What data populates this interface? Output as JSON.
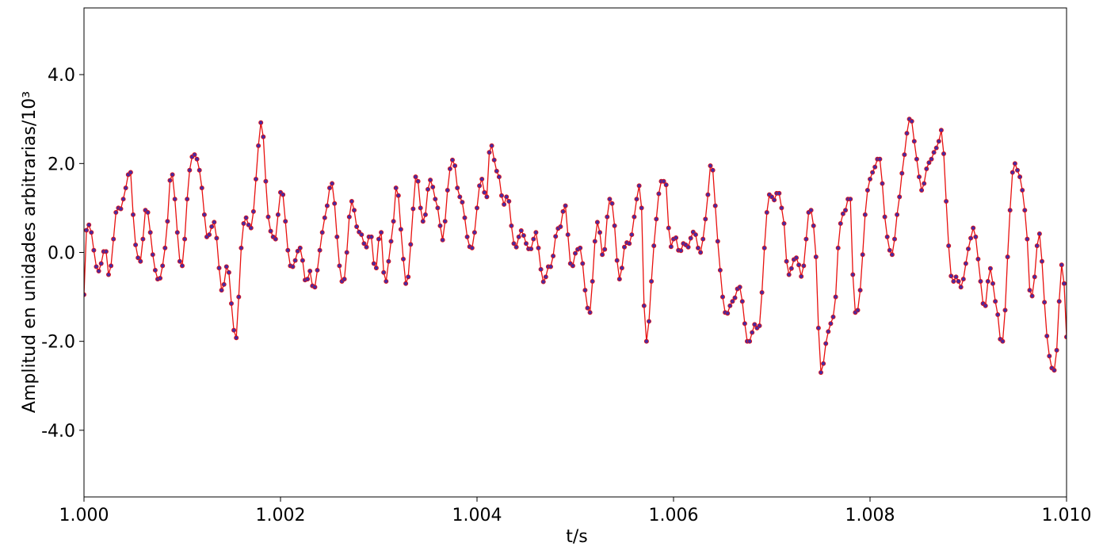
{
  "chart_data": {
    "type": "line",
    "markers": true,
    "xlabel": "t/s",
    "ylabel": "Amplitud en unidades arbitrarias/10³",
    "color": "#e8110f",
    "marker_color": "#4b2aa0",
    "xlim": [
      1.0,
      1.01
    ],
    "ylim": [
      -5.5,
      5.5
    ],
    "xticks": [
      {
        "value": 1.0,
        "label": "1.000"
      },
      {
        "value": 1.002,
        "label": "1.002"
      },
      {
        "value": 1.004,
        "label": "1.004"
      },
      {
        "value": 1.006,
        "label": "1.006"
      },
      {
        "value": 1.008,
        "label": "1.008"
      },
      {
        "value": 1.01,
        "label": "1.010"
      }
    ],
    "yticks": [
      {
        "value": -4,
        "label": "-4.0"
      },
      {
        "value": -2,
        "label": "-2.0"
      },
      {
        "value": 0,
        "label": "0.0"
      },
      {
        "value": 2,
        "label": "2.0"
      },
      {
        "value": 4,
        "label": "4.0"
      }
    ],
    "x": [
      1.0,
      1.000025,
      1.00005,
      1.000075,
      1.0001,
      1.000125,
      1.00015,
      1.000175,
      1.0002,
      1.000225,
      1.00025,
      1.000275,
      1.0003,
      1.000325,
      1.00035,
      1.000375,
      1.0004,
      1.000425,
      1.00045,
      1.000475,
      1.0005,
      1.000525,
      1.00055,
      1.000575,
      1.0006,
      1.000625,
      1.00065,
      1.000675,
      1.0007,
      1.000725,
      1.00075,
      1.000775,
      1.0008,
      1.000825,
      1.00085,
      1.000875,
      1.0009,
      1.000925,
      1.00095,
      1.000975,
      1.001,
      1.001025,
      1.00105,
      1.001075,
      1.0011,
      1.001125,
      1.00115,
      1.001175,
      1.0012,
      1.001225,
      1.00125,
      1.001275,
      1.0013,
      1.001325,
      1.00135,
      1.001375,
      1.0014,
      1.001425,
      1.00145,
      1.001475,
      1.0015,
      1.001525,
      1.00155,
      1.001575,
      1.0016,
      1.001625,
      1.00165,
      1.001675,
      1.0017,
      1.001725,
      1.00175,
      1.001775,
      1.0018,
      1.001825,
      1.00185,
      1.001875,
      1.0019,
      1.001925,
      1.00195,
      1.001975,
      1.002,
      1.002025,
      1.00205,
      1.002075,
      1.0021,
      1.002125,
      1.00215,
      1.002175,
      1.0022,
      1.002225,
      1.00225,
      1.002275,
      1.0023,
      1.002325,
      1.00235,
      1.002375,
      1.0024,
      1.002425,
      1.00245,
      1.002475,
      1.0025,
      1.002525,
      1.00255,
      1.002575,
      1.0026,
      1.002625,
      1.00265,
      1.002675,
      1.0027,
      1.002725,
      1.00275,
      1.002775,
      1.0028,
      1.002825,
      1.00285,
      1.002875,
      1.0029,
      1.002925,
      1.00295,
      1.002975,
      1.003,
      1.003025,
      1.00305,
      1.003075,
      1.0031,
      1.003125,
      1.00315,
      1.003175,
      1.0032,
      1.003225,
      1.00325,
      1.003275,
      1.0033,
      1.003325,
      1.00335,
      1.003375,
      1.0034,
      1.003425,
      1.00345,
      1.003475,
      1.0035,
      1.003525,
      1.00355,
      1.003575,
      1.0036,
      1.003625,
      1.00365,
      1.003675,
      1.0037,
      1.003725,
      1.00375,
      1.003775,
      1.0038,
      1.003825,
      1.00385,
      1.003875,
      1.0039,
      1.003925,
      1.00395,
      1.003975,
      1.004,
      1.004025,
      1.00405,
      1.004075,
      1.0041,
      1.004125,
      1.00415,
      1.004175,
      1.0042,
      1.004225,
      1.00425,
      1.004275,
      1.0043,
      1.004325,
      1.00435,
      1.004375,
      1.0044,
      1.004425,
      1.00445,
      1.004475,
      1.0045,
      1.004525,
      1.00455,
      1.004575,
      1.0046,
      1.004625,
      1.00465,
      1.004675,
      1.0047,
      1.004725,
      1.00475,
      1.004775,
      1.0048,
      1.004825,
      1.00485,
      1.004875,
      1.0049,
      1.004925,
      1.00495,
      1.004975,
      1.005,
      1.005025,
      1.00505,
      1.005075,
      1.0051,
      1.005125,
      1.00515,
      1.005175,
      1.0052,
      1.005225,
      1.00525,
      1.005275,
      1.0053,
      1.005325,
      1.00535,
      1.005375,
      1.0054,
      1.005425,
      1.00545,
      1.005475,
      1.0055,
      1.005525,
      1.00555,
      1.005575,
      1.0056,
      1.005625,
      1.00565,
      1.005675,
      1.0057,
      1.005725,
      1.00575,
      1.005775,
      1.0058,
      1.005825,
      1.00585,
      1.005875,
      1.0059,
      1.005925,
      1.00595,
      1.005975,
      1.006,
      1.006025,
      1.00605,
      1.006075,
      1.0061,
      1.006125,
      1.00615,
      1.006175,
      1.0062,
      1.006225,
      1.00625,
      1.006275,
      1.0063,
      1.006325,
      1.00635,
      1.006375,
      1.0064,
      1.006425,
      1.00645,
      1.006475,
      1.0065,
      1.006525,
      1.00655,
      1.006575,
      1.0066,
      1.006625,
      1.00665,
      1.006675,
      1.0067,
      1.006725,
      1.00675,
      1.006775,
      1.0068,
      1.006825,
      1.00685,
      1.006875,
      1.0069,
      1.006925,
      1.00695,
      1.006975,
      1.007,
      1.007025,
      1.00705,
      1.007075,
      1.0071,
      1.007125,
      1.00715,
      1.007175,
      1.0072,
      1.007225,
      1.00725,
      1.007275,
      1.0073,
      1.007325,
      1.00735,
      1.007375,
      1.0074,
      1.007425,
      1.00745,
      1.007475,
      1.0075,
      1.007525,
      1.00755,
      1.007575,
      1.0076,
      1.007625,
      1.00765,
      1.007675,
      1.0077,
      1.007725,
      1.00775,
      1.007775,
      1.0078,
      1.007825,
      1.00785,
      1.007875,
      1.0079,
      1.007925,
      1.00795,
      1.007975,
      1.008,
      1.008025,
      1.00805,
      1.008075,
      1.0081,
      1.008125,
      1.00815,
      1.008175,
      1.0082,
      1.008225,
      1.00825,
      1.008275,
      1.0083,
      1.008325,
      1.00835,
      1.008375,
      1.0084,
      1.008425,
      1.00845,
      1.008475,
      1.0085,
      1.008525,
      1.00855,
      1.008575,
      1.0086,
      1.008625,
      1.00865,
      1.008675,
      1.0087,
      1.008725,
      1.00875,
      1.008775,
      1.0088,
      1.008825,
      1.00885,
      1.008875,
      1.0089,
      1.008925,
      1.00895,
      1.008975,
      1.009,
      1.009025,
      1.00905,
      1.009075,
      1.0091,
      1.009125,
      1.00915,
      1.009175,
      1.0092,
      1.009225,
      1.00925,
      1.009275,
      1.0093,
      1.009325,
      1.00935,
      1.009375,
      1.0094,
      1.009425,
      1.00945,
      1.009475,
      1.0095,
      1.009525,
      1.00955,
      1.009575,
      1.0096,
      1.009625,
      1.00965,
      1.009675,
      1.0097,
      1.009725,
      1.00975,
      1.009775,
      1.0098,
      1.009825,
      1.00985,
      1.009875,
      1.0099,
      1.009925,
      1.00995,
      1.009975,
      1.01
    ],
    "values": [
      -0.95,
      0.5,
      0.62,
      0.45,
      0.05,
      -0.32,
      -0.42,
      -0.25,
      0.02,
      0.02,
      -0.5,
      -0.3,
      0.3,
      0.9,
      1.0,
      0.98,
      1.2,
      1.45,
      1.75,
      1.8,
      0.85,
      0.17,
      -0.12,
      -0.2,
      0.3,
      0.95,
      0.9,
      0.45,
      -0.05,
      -0.4,
      -0.6,
      -0.58,
      -0.3,
      0.1,
      0.7,
      1.62,
      1.75,
      1.2,
      0.45,
      -0.2,
      -0.3,
      0.3,
      1.2,
      1.85,
      2.15,
      2.2,
      2.1,
      1.85,
      1.45,
      0.85,
      0.35,
      0.4,
      0.58,
      0.68,
      0.32,
      -0.35,
      -0.85,
      -0.72,
      -0.32,
      -0.45,
      -1.15,
      -1.75,
      -1.92,
      -1.0,
      0.1,
      0.65,
      0.78,
      0.62,
      0.55,
      0.92,
      1.65,
      2.4,
      2.92,
      2.6,
      1.6,
      0.8,
      0.48,
      0.35,
      0.3,
      0.85,
      1.35,
      1.3,
      0.7,
      0.05,
      -0.3,
      -0.32,
      -0.18,
      0.03,
      0.1,
      -0.18,
      -0.62,
      -0.6,
      -0.42,
      -0.75,
      -0.78,
      -0.4,
      0.05,
      0.45,
      0.78,
      1.05,
      1.45,
      1.55,
      1.1,
      0.35,
      -0.3,
      -0.65,
      -0.6,
      0.0,
      0.8,
      1.15,
      0.95,
      0.58,
      0.46,
      0.4,
      0.2,
      0.12,
      0.35,
      0.35,
      -0.25,
      -0.35,
      0.3,
      0.45,
      -0.45,
      -0.65,
      -0.2,
      0.25,
      0.7,
      1.45,
      1.28,
      0.52,
      -0.15,
      -0.7,
      -0.55,
      0.18,
      0.98,
      1.7,
      1.6,
      1.0,
      0.7,
      0.85,
      1.42,
      1.63,
      1.47,
      1.2,
      1.0,
      0.6,
      0.28,
      0.7,
      1.4,
      1.88,
      2.08,
      1.95,
      1.45,
      1.25,
      1.13,
      0.78,
      0.35,
      0.13,
      0.1,
      0.45,
      1.0,
      1.5,
      1.65,
      1.35,
      1.25,
      2.25,
      2.4,
      2.08,
      1.83,
      1.7,
      1.28,
      1.08,
      1.25,
      1.15,
      0.6,
      0.2,
      0.12,
      0.35,
      0.49,
      0.38,
      0.2,
      0.08,
      0.08,
      0.3,
      0.45,
      0.1,
      -0.38,
      -0.66,
      -0.55,
      -0.32,
      -0.32,
      -0.08,
      0.36,
      0.54,
      0.58,
      0.92,
      1.05,
      0.4,
      -0.25,
      -0.3,
      -0.02,
      0.07,
      0.1,
      -0.25,
      -0.85,
      -1.25,
      -1.35,
      -0.65,
      0.25,
      0.68,
      0.45,
      -0.05,
      0.07,
      0.8,
      1.2,
      1.1,
      0.6,
      -0.18,
      -0.6,
      -0.35,
      0.12,
      0.22,
      0.2,
      0.4,
      0.8,
      1.2,
      1.5,
      1.0,
      -1.2,
      -2.0,
      -1.55,
      -0.65,
      0.15,
      0.75,
      1.32,
      1.6,
      1.6,
      1.52,
      0.55,
      0.13,
      0.3,
      0.33,
      0.05,
      0.04,
      0.2,
      0.17,
      0.12,
      0.32,
      0.46,
      0.4,
      0.1,
      0.0,
      0.3,
      0.75,
      1.3,
      1.95,
      1.85,
      1.05,
      0.25,
      -0.4,
      -1.0,
      -1.35,
      -1.37,
      -1.2,
      -1.1,
      -1.02,
      -0.82,
      -0.78,
      -1.1,
      -1.6,
      -2.0,
      -2.0,
      -1.8,
      -1.62,
      -1.7,
      -1.65,
      -0.9,
      0.1,
      0.9,
      1.3,
      1.25,
      1.18,
      1.33,
      1.33,
      1.0,
      0.65,
      -0.2,
      -0.5,
      -0.36,
      -0.16,
      -0.12,
      -0.28,
      -0.54,
      -0.3,
      0.3,
      0.9,
      0.95,
      0.6,
      -0.1,
      -1.7,
      -2.7,
      -2.5,
      -2.05,
      -1.78,
      -1.6,
      -1.45,
      -1.0,
      0.1,
      0.65,
      0.87,
      0.95,
      1.2,
      1.2,
      -0.5,
      -1.35,
      -1.3,
      -0.85,
      -0.05,
      0.85,
      1.4,
      1.65,
      1.8,
      1.92,
      2.1,
      2.1,
      1.55,
      0.8,
      0.35,
      0.05,
      -0.05,
      0.3,
      0.85,
      1.25,
      1.78,
      2.2,
      2.68,
      3.0,
      2.95,
      2.5,
      2.1,
      1.7,
      1.4,
      1.55,
      1.88,
      2.02,
      2.1,
      2.25,
      2.35,
      2.5,
      2.75,
      2.22,
      1.15,
      0.15,
      -0.53,
      -0.65,
      -0.55,
      -0.65,
      -0.78,
      -0.6,
      -0.25,
      0.08,
      0.32,
      0.55,
      0.35,
      -0.15,
      -0.65,
      -1.15,
      -1.2,
      -0.65,
      -0.36,
      -0.7,
      -1.1,
      -1.4,
      -1.95,
      -2.0,
      -1.3,
      -0.1,
      0.95,
      1.8,
      2.0,
      1.85,
      1.7,
      1.4,
      0.95,
      0.3,
      -0.85,
      -0.98,
      -0.55,
      0.15,
      0.42,
      -0.2,
      -1.12,
      -1.88,
      -2.33,
      -2.6,
      -2.65,
      -2.2,
      -1.1,
      -0.28,
      -0.7,
      -1.9
    ]
  }
}
